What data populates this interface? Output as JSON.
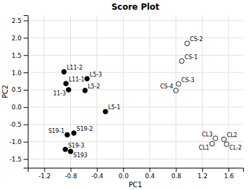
{
  "chart_data": {
    "type": "scatter",
    "title": "Score Plot",
    "xlabel": "PC1",
    "ylabel": "PC2",
    "xlim": [
      -1.45,
      1.82
    ],
    "ylim": [
      -1.75,
      2.65
    ],
    "xticks": [
      -1.2,
      -0.8,
      -0.4,
      {
        "value": 0.0,
        "label": "0.0"
      },
      0.4,
      0.8,
      1.2,
      1.6
    ],
    "yticks": [
      -1.5,
      {
        "value": -1.0,
        "label": "-1.0"
      },
      -0.5,
      {
        "value": 0.0,
        "label": "0.0"
      },
      0.5,
      {
        "value": 1.0,
        "label": "1.0"
      },
      1.5,
      {
        "value": 2.0,
        "label": "2.0"
      },
      2.5
    ],
    "grid": true,
    "series": [
      {
        "color": "#000000",
        "marker": "o",
        "x": [
          -0.9,
          -0.87,
          -0.83,
          -0.55,
          -0.58,
          -0.27,
          -0.85,
          -0.75,
          -0.88,
          -0.8
        ],
        "values": [
          1.02,
          0.68,
          0.5,
          0.82,
          0.48,
          -0.13,
          -0.8,
          -0.75,
          -1.22,
          -1.28
        ],
        "labels": [
          "L11-2",
          "L11-1",
          "11-3",
          "L5-3",
          "L5-2",
          "L5-1",
          "S19-1",
          "S19-2",
          "S19-3",
          "S193"
        ]
      },
      {
        "color": "#ffffff",
        "marker": "o",
        "x": [
          0.97,
          0.89,
          0.84,
          0.8,
          1.4,
          1.53,
          1.35,
          1.57
        ],
        "values": [
          1.84,
          1.33,
          0.67,
          0.48,
          -0.9,
          -0.93,
          -1.06,
          -1.07
        ],
        "labels": [
          "CS-2",
          "CS-1",
          "CS-3",
          "CS-4",
          "CL3",
          "CL2",
          "CL1",
          "CL-2"
        ]
      }
    ]
  }
}
